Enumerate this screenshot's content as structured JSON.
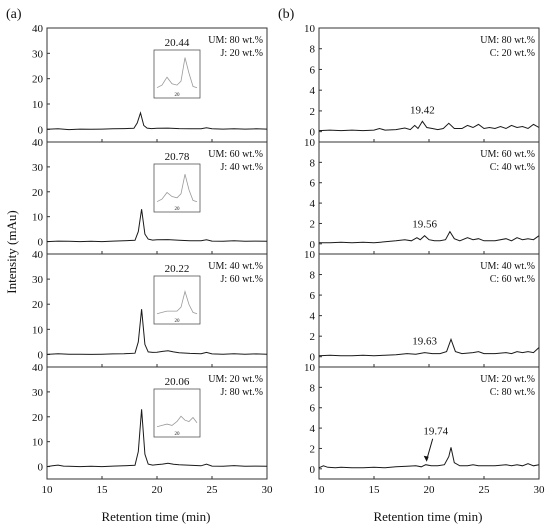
{
  "figure": {
    "ylabel": "Intensity (mAu)",
    "xlabel": "Retention time (min)",
    "panel_labels": [
      "(a)",
      "(b)"
    ],
    "colors": {
      "trace": "#1a1a1a",
      "axis": "#333333",
      "inset_trace": "#9a9a9a"
    }
  },
  "chart_data": [
    {
      "type": "line",
      "panel": "(a)",
      "row": 1,
      "annotation": [
        "UM: 80 wt.%",
        "J: 20 wt.%"
      ],
      "peak_label": "20.44",
      "peak_x": 18.5,
      "peak_y": 6.5,
      "xlim": [
        10,
        30
      ],
      "ylim": [
        -5,
        40
      ],
      "xticks": [
        10,
        15,
        20,
        25,
        30
      ],
      "yticks": [
        0,
        10,
        20,
        30,
        40
      ],
      "xticklabels": [
        "10",
        "15",
        "20",
        "25",
        "30"
      ],
      "yticklabels": [
        "0",
        "10",
        "20",
        "30",
        "40"
      ],
      "inset": {
        "xticklabel": "20",
        "series": [
          [
            18.0,
            0.1
          ],
          [
            18.5,
            0.3
          ],
          [
            19.0,
            0.9
          ],
          [
            19.5,
            0.4
          ],
          [
            20.0,
            0.3
          ],
          [
            20.4,
            0.6
          ],
          [
            20.8,
            2.4
          ],
          [
            21.2,
            1.2
          ],
          [
            21.6,
            0.2
          ],
          [
            22.0,
            0.1
          ]
        ]
      },
      "series": [
        {
          "x": [
            10,
            11,
            12,
            13,
            14,
            15,
            16,
            17,
            17.9,
            18.2,
            18.5,
            18.8,
            19.1,
            19.5,
            20,
            21,
            22,
            23,
            24,
            24.5,
            25,
            26,
            27,
            28,
            29,
            30
          ],
          "y": [
            0.0,
            0.2,
            -0.1,
            0.1,
            0.0,
            0.1,
            0.2,
            0.3,
            0.4,
            2.5,
            6.5,
            1.5,
            0.5,
            0.3,
            0.4,
            0.5,
            0.3,
            0.2,
            0.2,
            0.6,
            0.2,
            0.1,
            0.2,
            0.1,
            0.2,
            0.1
          ]
        }
      ]
    },
    {
      "type": "line",
      "panel": "(a)",
      "row": 2,
      "annotation": [
        "UM: 60 wt.%",
        "J: 40 wt.%"
      ],
      "peak_label": "20.78",
      "peak_x": 18.6,
      "peak_y": 13,
      "xlim": [
        10,
        30
      ],
      "ylim": [
        -5,
        40
      ],
      "xticks": [
        10,
        15,
        20,
        25,
        30
      ],
      "yticks": [
        0,
        10,
        20,
        30,
        40
      ],
      "xticklabels": [
        "10",
        "15",
        "20",
        "25",
        "30"
      ],
      "yticklabels": [
        "0",
        "10",
        "20",
        "30",
        "40"
      ],
      "inset": {
        "xticklabel": "20",
        "series": [
          [
            18.0,
            0.1
          ],
          [
            18.5,
            0.3
          ],
          [
            19.0,
            0.8
          ],
          [
            19.5,
            0.5
          ],
          [
            20.0,
            0.4
          ],
          [
            20.4,
            0.7
          ],
          [
            20.8,
            2.2
          ],
          [
            21.2,
            1.0
          ],
          [
            21.6,
            0.2
          ],
          [
            22.0,
            0.1
          ]
        ]
      },
      "series": [
        {
          "x": [
            10,
            11,
            12,
            13,
            14,
            15,
            16,
            17,
            18,
            18.3,
            18.6,
            18.9,
            19.2,
            19.6,
            20,
            21,
            22,
            23,
            24,
            24.5,
            25,
            26,
            27,
            28,
            29,
            30
          ],
          "y": [
            0.0,
            0.2,
            0.1,
            0.0,
            0.1,
            0.0,
            0.2,
            0.3,
            0.5,
            4.0,
            13.0,
            3.0,
            1.0,
            0.6,
            0.7,
            0.8,
            0.5,
            0.3,
            0.3,
            0.7,
            0.2,
            0.1,
            0.3,
            0.1,
            0.2,
            0.1
          ]
        }
      ]
    },
    {
      "type": "line",
      "panel": "(a)",
      "row": 3,
      "annotation": [
        "UM: 40 wt.%",
        "J: 60 wt.%"
      ],
      "peak_label": "20.22",
      "peak_x": 18.6,
      "peak_y": 18,
      "xlim": [
        10,
        30
      ],
      "ylim": [
        -5,
        40
      ],
      "xticks": [
        10,
        15,
        20,
        25,
        30
      ],
      "yticks": [
        0,
        10,
        20,
        30,
        40
      ],
      "xticklabels": [
        "10",
        "15",
        "20",
        "25",
        "30"
      ],
      "yticklabels": [
        "0",
        "10",
        "20",
        "30",
        "40"
      ],
      "inset": {
        "xticklabel": "20",
        "series": [
          [
            18.0,
            0.1
          ],
          [
            18.5,
            0.2
          ],
          [
            19.0,
            0.3
          ],
          [
            19.5,
            0.3
          ],
          [
            20.0,
            0.3
          ],
          [
            20.4,
            0.6
          ],
          [
            20.8,
            1.8
          ],
          [
            21.2,
            0.8
          ],
          [
            21.6,
            0.2
          ],
          [
            22.0,
            0.1
          ]
        ]
      },
      "series": [
        {
          "x": [
            10,
            11,
            12,
            13,
            14,
            15,
            16,
            17,
            18,
            18.3,
            18.6,
            18.9,
            19.2,
            19.6,
            20,
            20.5,
            21,
            21.5,
            22,
            23,
            24,
            24.5,
            25,
            26,
            27,
            28,
            29,
            30
          ],
          "y": [
            0.0,
            0.3,
            0.1,
            0.1,
            0.0,
            0.1,
            0.2,
            0.3,
            0.5,
            5.0,
            18.0,
            4.0,
            1.0,
            0.8,
            0.9,
            1.2,
            1.5,
            1.0,
            0.7,
            0.4,
            0.3,
            0.8,
            0.2,
            0.1,
            0.3,
            0.1,
            0.2,
            0.1
          ]
        }
      ]
    },
    {
      "type": "line",
      "panel": "(a)",
      "row": 4,
      "annotation": [
        "UM: 20 wt.%",
        "J: 80 wt.%"
      ],
      "peak_label": "20.06",
      "peak_x": 18.6,
      "peak_y": 23,
      "xlim": [
        10,
        30
      ],
      "ylim": [
        -5,
        40
      ],
      "xticks": [
        10,
        15,
        20,
        25,
        30
      ],
      "yticks": [
        0,
        10,
        20,
        30,
        40
      ],
      "xticklabels": [
        "10",
        "15",
        "20",
        "25",
        "30"
      ],
      "yticklabels": [
        "0",
        "10",
        "20",
        "30",
        "40"
      ],
      "inset": {
        "xticklabel": "20",
        "series": [
          [
            18.0,
            0.1
          ],
          [
            18.5,
            0.2
          ],
          [
            19.0,
            0.3
          ],
          [
            19.5,
            0.2
          ],
          [
            20.0,
            0.5
          ],
          [
            20.4,
            0.9
          ],
          [
            20.8,
            0.6
          ],
          [
            21.2,
            0.5
          ],
          [
            21.6,
            0.8
          ],
          [
            22.0,
            0.4
          ]
        ]
      },
      "series": [
        {
          "x": [
            10,
            10.5,
            11,
            11.5,
            12,
            13,
            14,
            15,
            16,
            17,
            18,
            18.3,
            18.6,
            18.9,
            19.2,
            19.6,
            20,
            20.5,
            21,
            21.5,
            22,
            23,
            24,
            24.5,
            25,
            26,
            27,
            28,
            29,
            30
          ],
          "y": [
            0.0,
            0.3,
            0.6,
            0.2,
            0.1,
            0.0,
            0.1,
            0.0,
            0.2,
            0.3,
            0.5,
            6.0,
            23.0,
            5.0,
            1.0,
            0.6,
            0.8,
            1.0,
            1.3,
            0.9,
            0.7,
            0.5,
            0.3,
            1.0,
            0.2,
            0.1,
            0.4,
            0.1,
            0.2,
            0.1
          ]
        }
      ]
    },
    {
      "type": "line",
      "panel": "(b)",
      "row": 1,
      "annotation": [
        "UM: 80 wt.%",
        "C: 20 wt.%"
      ],
      "peak_label": "19.42",
      "peak_x": 19.4,
      "peak_y": 1.0,
      "xlim": [
        10,
        30
      ],
      "ylim": [
        -1,
        10
      ],
      "xticks": [
        10,
        15,
        20,
        25,
        30
      ],
      "yticks": [
        0,
        2,
        4,
        6,
        8,
        10
      ],
      "xticklabels": [
        "10",
        "15",
        "20",
        "25",
        "30"
      ],
      "yticklabels": [
        "0",
        "2",
        "4",
        "6",
        "8",
        "10"
      ],
      "series": [
        {
          "x": [
            10,
            11,
            12,
            13,
            14,
            15,
            15.5,
            16,
            17,
            17.8,
            18.3,
            18.7,
            19.0,
            19.4,
            19.8,
            20.3,
            20.8,
            21.3,
            21.8,
            22.3,
            23,
            23.5,
            24,
            24.5,
            25,
            25.5,
            26,
            26.5,
            27,
            27.5,
            28,
            28.5,
            29,
            29.5,
            30
          ],
          "y": [
            0.1,
            0.15,
            0.1,
            0.15,
            0.1,
            0.15,
            0.3,
            0.15,
            0.2,
            0.35,
            0.2,
            0.6,
            0.3,
            1.0,
            0.4,
            0.3,
            0.2,
            0.3,
            0.8,
            0.3,
            0.3,
            0.6,
            0.4,
            0.7,
            0.3,
            0.4,
            0.3,
            0.5,
            0.3,
            0.6,
            0.4,
            0.5,
            0.3,
            0.7,
            0.4
          ]
        }
      ]
    },
    {
      "type": "line",
      "panel": "(b)",
      "row": 2,
      "annotation": [
        "UM: 60 wt.%",
        "C: 40 wt.%"
      ],
      "peak_label": "19.56",
      "peak_x": 19.6,
      "peak_y": 0.8,
      "xlim": [
        10,
        30
      ],
      "ylim": [
        -1,
        10
      ],
      "xticks": [
        10,
        15,
        20,
        25,
        30
      ],
      "yticks": [
        0,
        2,
        4,
        6,
        8,
        10
      ],
      "xticklabels": [
        "10",
        "15",
        "20",
        "25",
        "30"
      ],
      "yticklabels": [
        "0",
        "2",
        "4",
        "6",
        "8",
        "10"
      ],
      "series": [
        {
          "x": [
            10,
            11,
            12,
            13,
            14,
            15,
            16,
            17,
            17.8,
            18.4,
            18.9,
            19.2,
            19.6,
            20.0,
            20.5,
            21.0,
            21.5,
            21.9,
            22.3,
            22.8,
            23.5,
            24,
            24.5,
            25,
            26,
            27,
            27.5,
            28,
            28.5,
            29,
            29.5,
            30
          ],
          "y": [
            0.1,
            0.1,
            0.15,
            0.1,
            0.15,
            0.1,
            0.2,
            0.3,
            0.4,
            0.3,
            0.6,
            0.4,
            0.8,
            0.4,
            0.3,
            0.3,
            0.4,
            1.2,
            0.5,
            0.3,
            0.6,
            0.4,
            0.5,
            0.3,
            0.3,
            0.5,
            0.3,
            0.6,
            0.4,
            0.5,
            0.4,
            0.8
          ]
        }
      ]
    },
    {
      "type": "line",
      "panel": "(b)",
      "row": 3,
      "annotation": [
        "UM: 40 wt.%",
        "C: 60 wt.%"
      ],
      "peak_label": "19.63",
      "peak_x": 19.6,
      "peak_y": 0.4,
      "xlim": [
        10,
        30
      ],
      "ylim": [
        -1,
        10
      ],
      "xticks": [
        10,
        15,
        20,
        25,
        30
      ],
      "yticks": [
        0,
        2,
        4,
        6,
        8,
        10
      ],
      "xticklabels": [
        "10",
        "15",
        "20",
        "25",
        "30"
      ],
      "yticklabels": [
        "0",
        "2",
        "4",
        "6",
        "8",
        "10"
      ],
      "series": [
        {
          "x": [
            10,
            11,
            12,
            13,
            14,
            15,
            16,
            17,
            18,
            18.8,
            19.6,
            20.3,
            21.0,
            21.6,
            22.0,
            22.4,
            23,
            24,
            24.5,
            25,
            26,
            27,
            27.5,
            28,
            28.5,
            29,
            29.5,
            30
          ],
          "y": [
            0.1,
            0.15,
            0.1,
            0.1,
            0.15,
            0.1,
            0.15,
            0.2,
            0.3,
            0.25,
            0.4,
            0.3,
            0.3,
            0.5,
            1.7,
            0.5,
            0.3,
            0.4,
            0.5,
            0.3,
            0.3,
            0.4,
            0.3,
            0.5,
            0.4,
            0.5,
            0.4,
            0.9
          ]
        }
      ]
    },
    {
      "type": "line",
      "panel": "(b)",
      "row": 4,
      "annotation": [
        "UM: 20 wt.%",
        "C: 80 wt.%"
      ],
      "peak_label": "19.74",
      "peak_x": 19.7,
      "peak_y": 0.4,
      "xlim": [
        10,
        30
      ],
      "ylim": [
        -1,
        10
      ],
      "xticks": [
        10,
        15,
        20,
        25,
        30
      ],
      "yticks": [
        0,
        2,
        4,
        6,
        8,
        10
      ],
      "xticklabels": [
        "10",
        "15",
        "20",
        "25",
        "30"
      ],
      "yticklabels": [
        "0",
        "2",
        "4",
        "6",
        "8",
        "10"
      ],
      "series": [
        {
          "x": [
            10,
            10.4,
            10.8,
            11.5,
            12,
            13,
            14,
            15,
            16,
            17,
            18,
            18.8,
            19.3,
            19.7,
            20.2,
            20.8,
            21.4,
            21.8,
            22.0,
            22.3,
            22.8,
            23.5,
            24,
            24.5,
            25,
            26,
            27,
            27.5,
            28,
            28.5,
            29,
            29.5,
            30
          ],
          "y": [
            0.1,
            0.3,
            0.15,
            0.1,
            0.15,
            0.1,
            0.1,
            0.15,
            0.1,
            0.2,
            0.25,
            0.3,
            0.2,
            0.4,
            0.3,
            0.3,
            0.4,
            1.2,
            2.1,
            0.6,
            0.3,
            0.3,
            0.4,
            0.3,
            0.3,
            0.3,
            0.4,
            0.3,
            0.4,
            0.3,
            0.5,
            0.3,
            0.4
          ]
        }
      ]
    }
  ]
}
